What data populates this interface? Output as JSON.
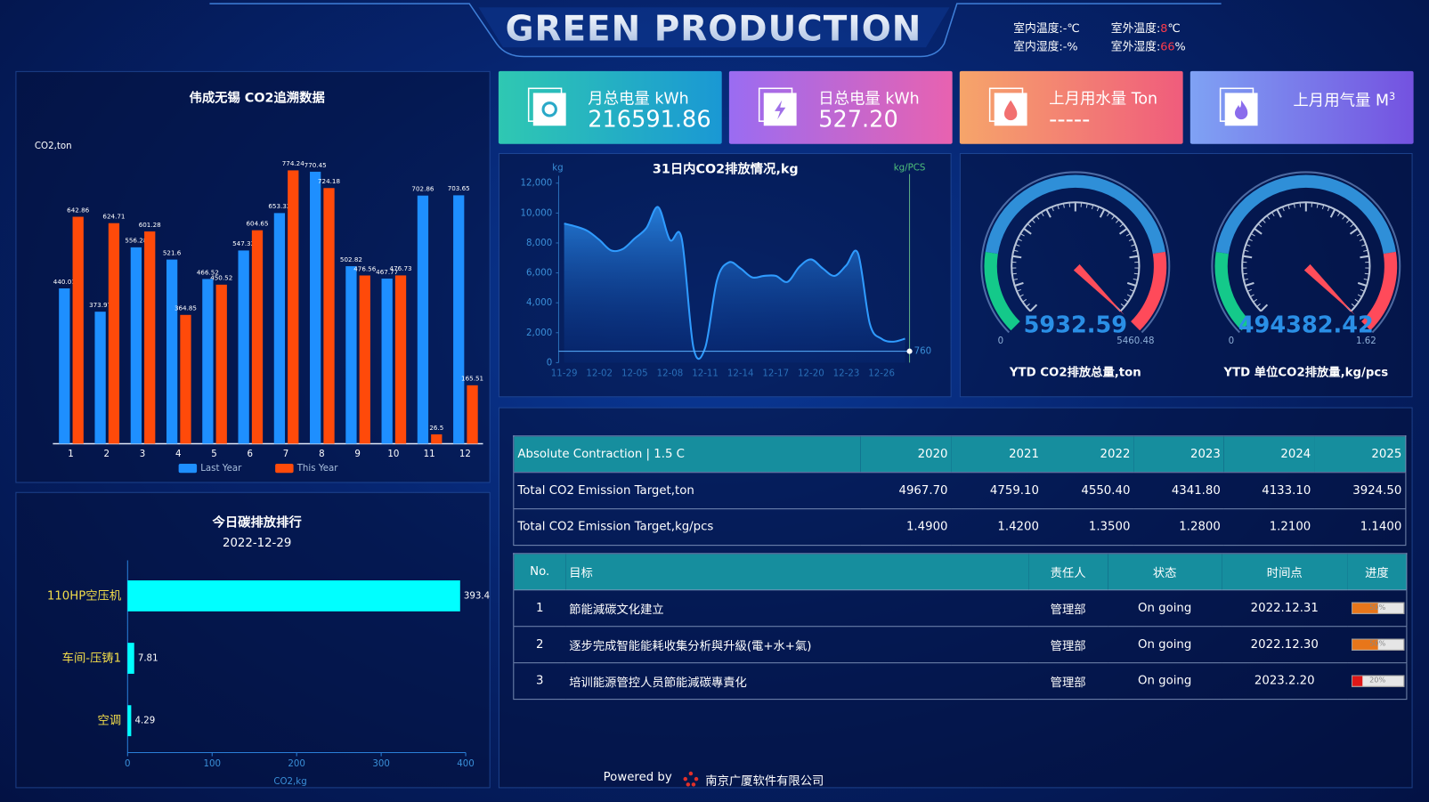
{
  "header": {
    "title": "GREEN  PRODUCTION"
  },
  "weather": [
    {
      "label": "室内温度:",
      "value": "-",
      "unit": "℃"
    },
    {
      "label": "室外温度:",
      "value": "8",
      "unit": "℃"
    },
    {
      "label": "室内湿度:",
      "value": "-",
      "unit": "%"
    },
    {
      "label": "室外湿度:",
      "value": "66",
      "unit": "%"
    }
  ],
  "kpis": [
    {
      "label": "月总电量 kWh",
      "value": "216591.86"
    },
    {
      "label": "日总电量 kWh",
      "value": "527.20"
    },
    {
      "label": "上月用水量 Ton",
      "value": "-----"
    },
    {
      "label": "上月用气量 M",
      "sup": "3"
    }
  ],
  "chart_data": [
    {
      "type": "grouped-bar",
      "title": "伟成无锡 CO2追溯数据",
      "ylabel": "CO2,ton",
      "categories": [
        "1",
        "2",
        "3",
        "4",
        "5",
        "6",
        "7",
        "8",
        "9",
        "10",
        "11",
        "12"
      ],
      "series": [
        {
          "name": "Last Year",
          "color": "#1e8fff",
          "values": [
            440.01,
            373.97,
            556.28,
            521.6,
            466.52,
            547.32,
            653.32,
            770.45,
            502.82,
            467.77,
            702.86,
            703.65
          ]
        },
        {
          "name": "This Year",
          "color": "#ff4a0a",
          "values": [
            642.86,
            624.71,
            601.28,
            364.85,
            450.52,
            604.65,
            774.24,
            724.18,
            476.56,
            476.73,
            26.5,
            165.51
          ]
        }
      ]
    },
    {
      "type": "area",
      "title": "31日内CO2排放情况,kg",
      "ylabel": "kg",
      "y2label": "kg/PCS",
      "color": "#2f9bff",
      "x": [
        "11-29",
        null,
        null,
        "12-02",
        null,
        null,
        "12-05",
        null,
        null,
        "12-08",
        null,
        null,
        "12-11",
        null,
        null,
        "12-14",
        null,
        null,
        "12-17",
        null,
        null,
        "12-20",
        null,
        null,
        "12-23",
        null,
        null,
        "12-26",
        null,
        null
      ],
      "values": [
        9300,
        9100,
        8800,
        8200,
        7500,
        7600,
        8300,
        9000,
        10400,
        8200,
        8300,
        1000,
        1000,
        5500,
        6700,
        6300,
        5700,
        5800,
        5800,
        5400,
        6400,
        6900,
        6300,
        5800,
        6500,
        7300,
        2600,
        1600,
        1400,
        1600
      ],
      "ylim": [
        0,
        12000
      ],
      "yticks": [
        0,
        {
          "value": 2000,
          "label": "2,000"
        },
        {
          "value": 4000,
          "label": "4,000"
        },
        {
          "value": 6000,
          "label": "6,000"
        },
        {
          "value": 8000,
          "label": "8,000"
        },
        {
          "value": 10000,
          "label": "10,000"
        },
        {
          "value": 12000,
          "label": "12,000"
        }
      ],
      "mark_line": 760
    },
    {
      "type": "gauge",
      "title": "YTD CO2排放总量,ton",
      "value": 5932.59,
      "min": 0,
      "max": 5460.48
    },
    {
      "type": "gauge",
      "title": "YTD 单位CO2排放量,kg/pcs",
      "value": 494382.42,
      "min": 0,
      "max": 1.62
    },
    {
      "type": "hbar",
      "title": "今日碳排放排行",
      "subtitle": "2022-12-29",
      "color": "#00ffff",
      "categories": [
        "110HP空压机",
        "车间-压铸1",
        "空调"
      ],
      "values": [
        393.4,
        7.81,
        4.29
      ],
      "xlim": [
        0,
        400
      ],
      "xticks": [
        0,
        100,
        200,
        300,
        400
      ],
      "xlabel": "CO2,kg"
    }
  ],
  "target_table": {
    "header": [
      "Absolute Contraction | 1.5 C",
      "2020",
      "2021",
      "2022",
      "2023",
      "2024",
      "2025"
    ],
    "rows": [
      [
        "Total CO2 Emission Target,ton",
        "4967.70",
        "4759.10",
        "4550.40",
        "4341.80",
        "4133.10",
        "3924.50"
      ],
      [
        "Total CO2 Emission Target,kg/pcs",
        "1.4900",
        "1.4200",
        "1.3500",
        "1.2800",
        "1.2100",
        "1.1400"
      ]
    ]
  },
  "task_table": {
    "header": [
      "No.",
      "目标",
      "责任人",
      "状态",
      "时间点",
      "进度"
    ],
    "rows": [
      {
        "no": "1",
        "goal": "節能減碳文化建立",
        "owner": "管理部",
        "status": "On going",
        "date": "2022.12.31",
        "progress": 50,
        "progress_label": "50%"
      },
      {
        "no": "2",
        "goal": "逐步完成智能能耗收集分析與升級(電+水+氣)",
        "owner": "管理部",
        "status": "On going",
        "date": "2022.12.30",
        "progress": 50,
        "progress_label": "50%"
      },
      {
        "no": "3",
        "goal": "培训能源管控人员節能減碳專責化",
        "owner": "管理部",
        "status": "On going",
        "date": "2023.2.20",
        "progress": 20,
        "progress_label": "20%"
      }
    ]
  },
  "footer": {
    "powered": "Powered by",
    "company": "南京广厦软件有限公司"
  }
}
